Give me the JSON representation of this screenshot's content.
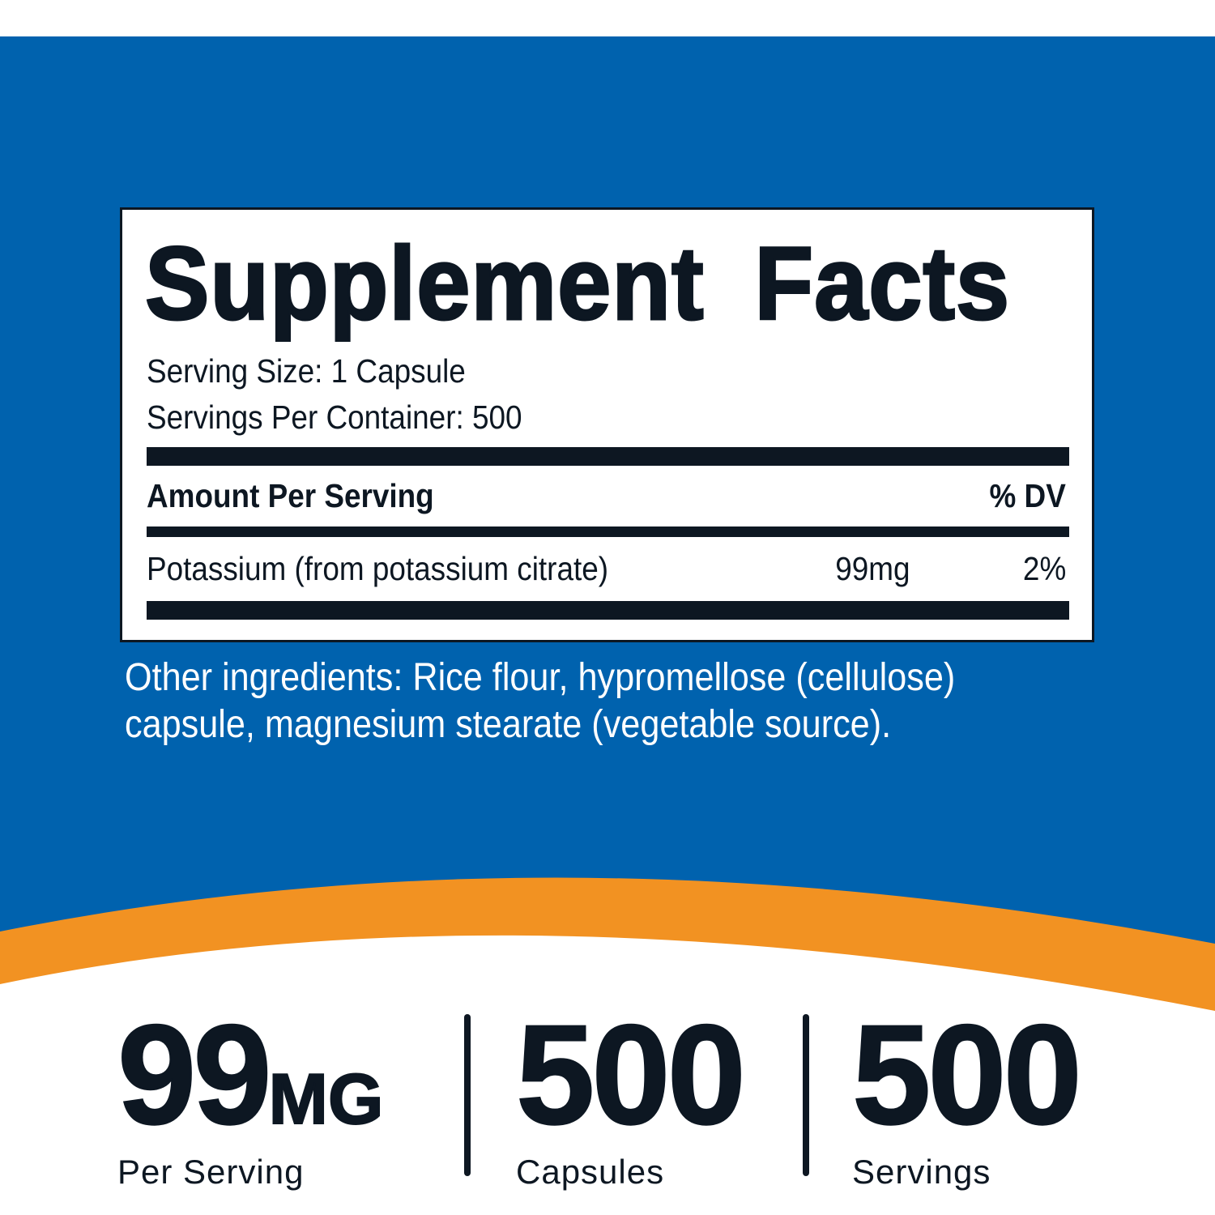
{
  "colors": {
    "blue": "#0062ae",
    "orange": "#f29222",
    "dark": "#0d1722"
  },
  "facts": {
    "title": "Supplement Facts",
    "serving_size": "Serving Size: 1 Capsule",
    "servings_per_container": "Servings Per Container: 500",
    "amount_header": "Amount Per Serving",
    "dv_header": "% DV",
    "rows": [
      {
        "name": "Potassium (from potassium citrate)",
        "amount": "99mg",
        "dv": "2%"
      }
    ]
  },
  "other_ingredients": [
    "Other ingredients: Rice flour, hypromellose (cellulose)",
    "capsule, magnesium stearate (vegetable source)."
  ],
  "stats": [
    {
      "value": "99",
      "unit": "MG",
      "label": "Per Serving"
    },
    {
      "value": "500",
      "unit": "",
      "label": "Capsules"
    },
    {
      "value": "500",
      "unit": "",
      "label": "Servings"
    }
  ]
}
